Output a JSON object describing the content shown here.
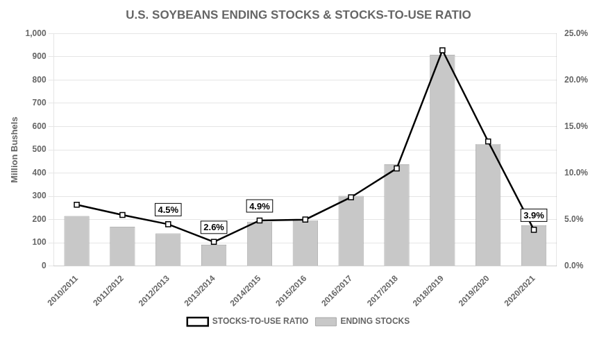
{
  "chart_data": {
    "type": "bar",
    "title": "U.S. SOYBEANS ENDING STOCKS & STOCKS-TO-USE RATIO",
    "categories": [
      "2010/2011",
      "2011/2012",
      "2012/2013",
      "2013/2014",
      "2014/2015",
      "2015/2016",
      "2016/2017",
      "2017/2018",
      "2018/2019",
      "2019/2020",
      "2020/2021"
    ],
    "series": [
      {
        "name": "ENDING STOCKS",
        "type": "bar",
        "color": "#c8c8c8",
        "values": [
          215,
          169,
          141,
          92,
          191,
          197,
          302,
          438,
          909,
          525,
          175
        ]
      },
      {
        "name": "STOCKS-TO-USE RATIO",
        "type": "line",
        "axis": "y2",
        "color": "#000000",
        "marker": "square",
        "line_style": "solid",
        "values": [
          0.066,
          0.055,
          0.045,
          0.026,
          0.049,
          0.05,
          0.074,
          0.105,
          0.232,
          0.134,
          0.039
        ]
      }
    ],
    "ylabel": "Million Bushels",
    "ylim": [
      0,
      1000
    ],
    "yticks": [
      0,
      100,
      200,
      300,
      400,
      500,
      600,
      700,
      800,
      900,
      {
        "value": 1000,
        "label": "1,000"
      }
    ],
    "y2lim": [
      0.0,
      0.25
    ],
    "y2ticks": [
      {
        "value": 0.0,
        "label": "0.0%"
      },
      {
        "value": 0.05,
        "label": "5.0%"
      },
      {
        "value": 0.1,
        "label": "10.0%"
      },
      {
        "value": 0.15,
        "label": "15.0%"
      },
      {
        "value": 0.2,
        "label": "20.0%"
      },
      {
        "value": 0.25,
        "label": "25.0%"
      }
    ],
    "annotations": [
      {
        "x": "2012/2013",
        "y": 0.045,
        "text": "4.5%",
        "axis": "y2"
      },
      {
        "x": "2013/2014",
        "y": 0.026,
        "text": "2.6%",
        "axis": "y2"
      },
      {
        "x": "2014/2015",
        "y": 0.049,
        "text": "4.9%",
        "axis": "y2"
      },
      {
        "x": "2020/2021",
        "y": 0.039,
        "text": "3.9%",
        "axis": "y2"
      }
    ],
    "grid": true,
    "legend": "bottom"
  }
}
